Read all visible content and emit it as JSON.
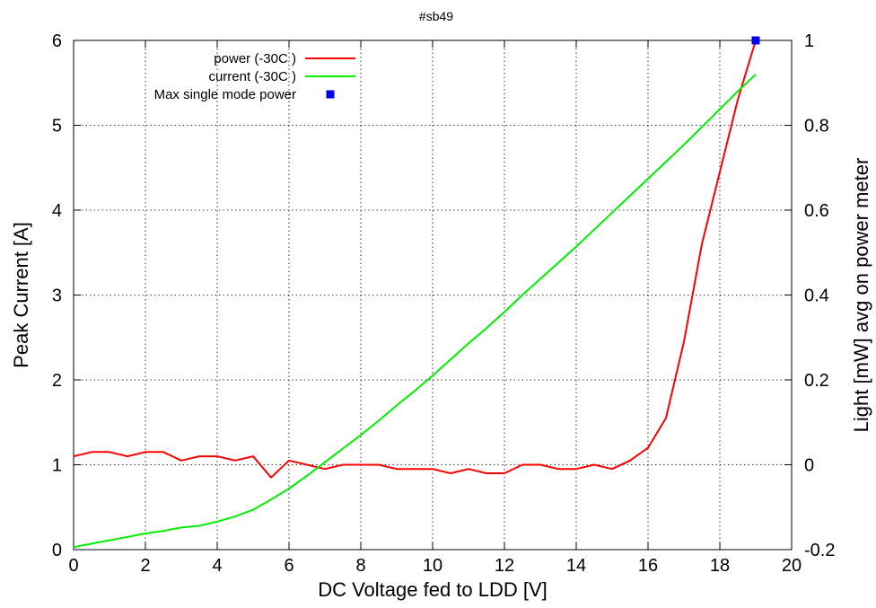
{
  "chart_data": {
    "type": "line",
    "title": "#sb49",
    "xlabel": "DC Voltage fed to LDD [V]",
    "ylabel": "Peak Current [A]",
    "y2label": "Light [mW] avg on power meter",
    "xlim": [
      0,
      20
    ],
    "ylim": [
      0,
      6
    ],
    "y2lim": [
      -0.2,
      1
    ],
    "x_ticks": [
      "0",
      "2",
      "4",
      "6",
      "8",
      "10",
      "12",
      "14",
      "16",
      "18",
      "20"
    ],
    "y_ticks": [
      "0",
      "1",
      "2",
      "3",
      "4",
      "5",
      "6"
    ],
    "y2_ticks": [
      "-0.2",
      "0",
      "0.2",
      "0.4",
      "0.6",
      "0.8",
      "1"
    ],
    "grid": true,
    "legend_position": "top-left",
    "series": [
      {
        "name": "power (-30C )",
        "axis": "y2",
        "color": "#ff0000",
        "x": [
          0,
          0.5,
          1,
          1.5,
          2,
          2.5,
          3,
          3.5,
          4,
          4.5,
          5,
          5.5,
          6,
          6.5,
          7,
          7.5,
          8,
          8.5,
          9,
          9.5,
          10,
          10.5,
          11,
          11.5,
          12,
          12.5,
          13,
          13.5,
          14,
          14.5,
          15,
          15.5,
          16,
          16.5,
          17,
          17.5,
          18,
          18.5,
          19
        ],
        "values": [
          0.02,
          0.03,
          0.03,
          0.02,
          0.03,
          0.03,
          0.01,
          0.02,
          0.02,
          0.01,
          0.02,
          -0.03,
          0.01,
          0.0,
          -0.01,
          0.0,
          0.0,
          0.0,
          -0.01,
          -0.01,
          -0.01,
          -0.02,
          -0.01,
          -0.02,
          -0.02,
          0.0,
          0.0,
          -0.01,
          -0.01,
          0.0,
          -0.01,
          0.01,
          0.04,
          0.11,
          0.29,
          0.52,
          0.69,
          0.86,
          1.0
        ]
      },
      {
        "name": "current (-30C )",
        "axis": "y",
        "color": "#00ee00",
        "x": [
          0,
          0.5,
          1,
          1.5,
          2,
          2.5,
          3,
          3.5,
          4,
          4.5,
          5,
          5.5,
          6,
          6.5,
          7,
          7.5,
          8,
          8.5,
          9,
          9.5,
          10,
          10.5,
          11,
          11.5,
          12,
          12.5,
          13,
          13.5,
          14,
          14.5,
          15,
          15.5,
          16,
          16.5,
          17,
          17.5,
          18,
          18.5,
          19
        ],
        "values": [
          0.03,
          0.07,
          0.11,
          0.15,
          0.19,
          0.22,
          0.26,
          0.28,
          0.33,
          0.39,
          0.47,
          0.59,
          0.72,
          0.87,
          1.03,
          1.19,
          1.35,
          1.52,
          1.7,
          1.87,
          2.05,
          2.24,
          2.43,
          2.61,
          2.8,
          3.0,
          3.19,
          3.38,
          3.57,
          3.77,
          3.97,
          4.17,
          4.37,
          4.57,
          4.77,
          4.98,
          5.19,
          5.4,
          5.6
        ]
      },
      {
        "name": "Max single mode power",
        "axis": "y2",
        "color": "#0000ee",
        "marker": "square",
        "x": [
          19
        ],
        "values": [
          1.0
        ]
      }
    ]
  }
}
